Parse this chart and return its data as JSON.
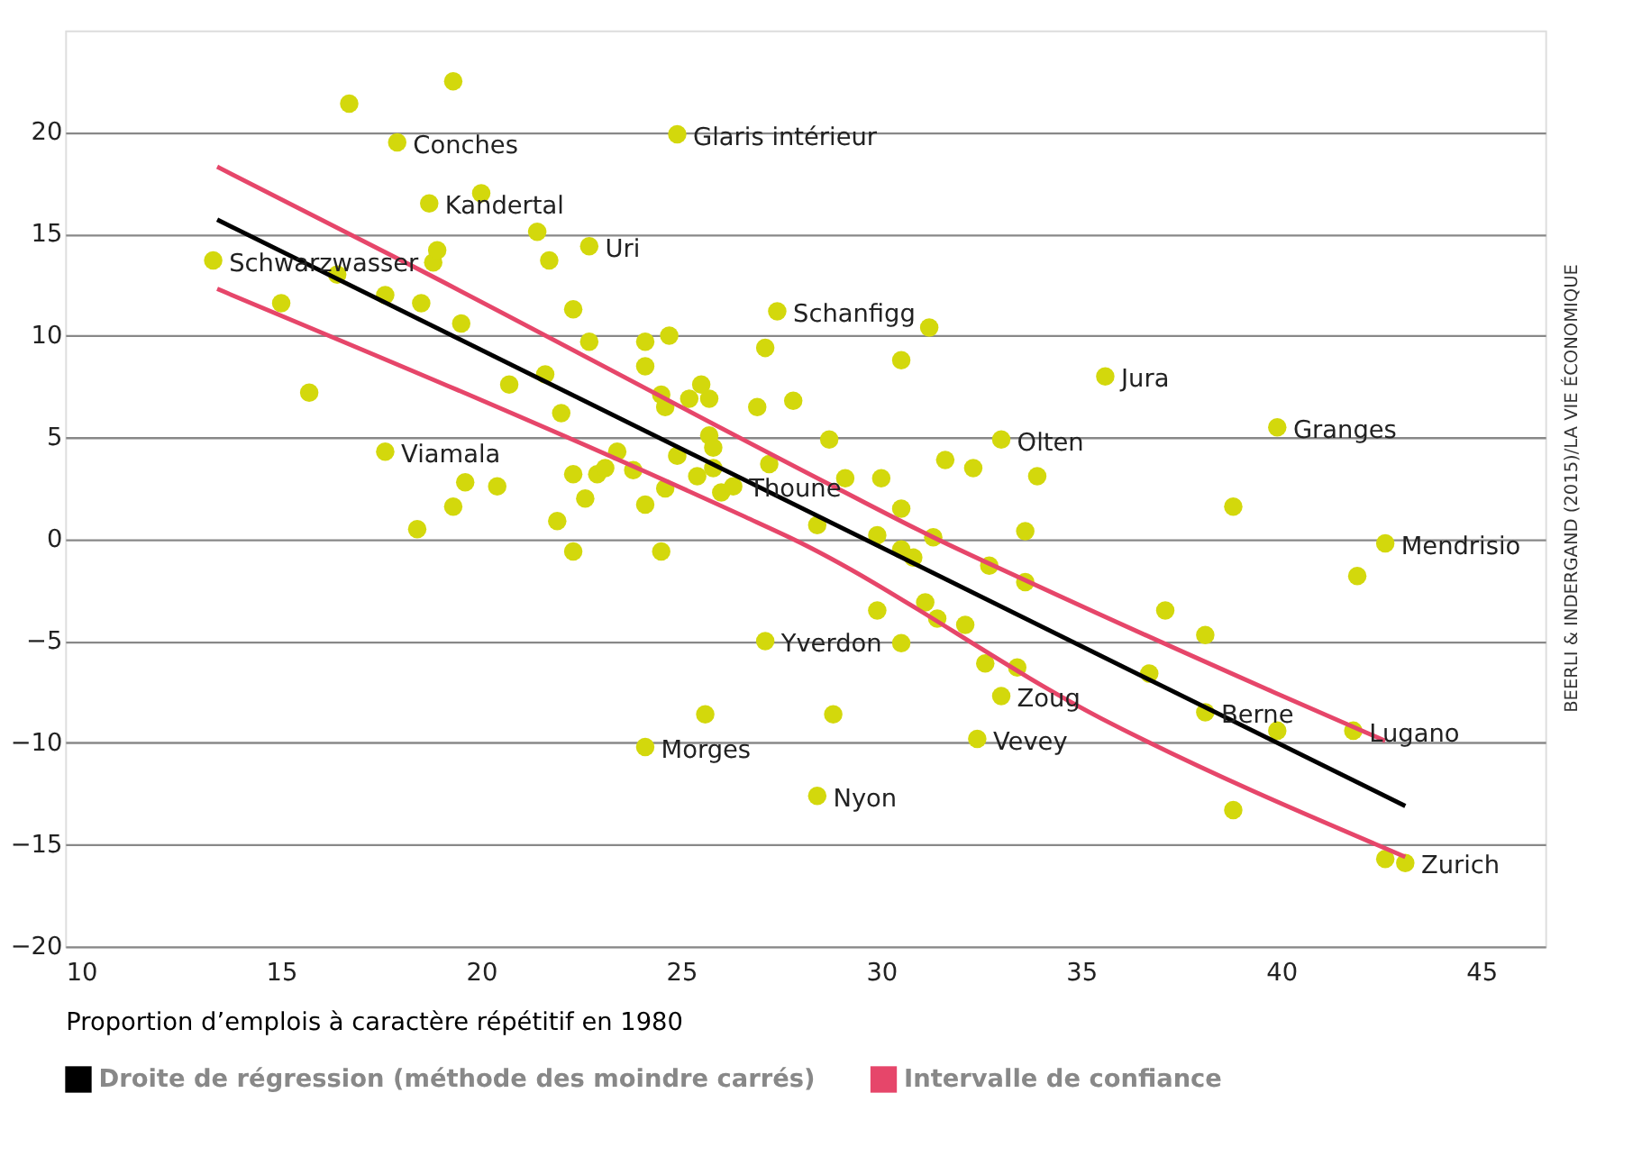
{
  "chart_data": {
    "type": "scatter",
    "xlabel": "Proportion d’emplois à caractère répétitif en 1980",
    "xlim": [
      9.6,
      46.6
    ],
    "xticks": [
      10,
      15,
      20,
      25,
      30,
      35,
      40,
      45
    ],
    "ylim": [
      -20,
      25
    ],
    "yticks": [
      -20,
      -15,
      -10,
      -5,
      0,
      5,
      10,
      15,
      20
    ],
    "grid": "y",
    "legend": "bottom",
    "series": [
      {
        "marker": "circle",
        "color": "#d3d80c",
        "x": [
          13.3,
          15.0,
          15.7,
          16.4,
          16.7,
          17.6,
          17.6,
          17.9,
          18.4,
          18.5,
          18.7,
          18.8,
          18.9,
          19.3,
          19.3,
          19.5,
          19.6,
          20.0,
          20.4,
          20.7,
          21.4,
          21.6,
          21.7,
          21.9,
          22.0,
          22.3,
          22.3,
          22.3,
          22.6,
          22.7,
          22.7,
          22.9,
          23.1,
          23.4,
          23.8,
          24.1,
          24.1,
          24.1,
          24.1,
          24.5,
          24.5,
          24.6,
          24.6,
          24.7,
          24.9,
          24.9,
          25.2,
          25.4,
          25.5,
          25.6,
          25.7,
          25.7,
          25.8,
          25.8,
          26.0,
          26.3,
          26.9,
          27.1,
          27.1,
          27.2,
          27.4,
          27.8,
          28.4,
          28.4,
          28.7,
          28.8,
          29.1,
          29.9,
          29.9,
          30.0,
          30.5,
          30.5,
          30.5,
          30.5,
          30.8,
          31.1,
          31.2,
          31.3,
          31.4,
          31.6,
          32.1,
          32.3,
          32.4,
          32.6,
          32.7,
          33.0,
          33.0,
          33.4,
          33.6,
          33.6,
          33.9,
          35.6,
          36.7,
          37.1,
          38.1,
          38.1,
          38.8,
          38.8,
          39.9,
          39.9,
          41.8,
          41.9,
          42.6,
          42.6,
          43.1
        ],
        "values": [
          13.7,
          11.6,
          7.2,
          13.0,
          21.4,
          12.0,
          4.3,
          19.5,
          0.5,
          11.6,
          16.5,
          13.6,
          14.2,
          22.5,
          1.6,
          10.6,
          2.8,
          17.0,
          2.6,
          7.6,
          15.1,
          8.1,
          13.7,
          0.9,
          6.2,
          11.3,
          3.2,
          -0.6,
          2.0,
          14.4,
          9.7,
          3.2,
          3.5,
          4.3,
          3.4,
          9.7,
          8.5,
          1.7,
          -10.2,
          7.1,
          -0.6,
          6.5,
          2.5,
          10.0,
          19.9,
          4.1,
          6.9,
          3.1,
          7.6,
          -8.6,
          6.9,
          5.1,
          4.5,
          3.5,
          2.3,
          2.6,
          6.5,
          9.4,
          -5.0,
          3.7,
          11.2,
          6.8,
          0.7,
          -12.6,
          4.9,
          -8.6,
          3.0,
          0.2,
          -3.5,
          3.0,
          8.8,
          1.5,
          -0.5,
          -5.1,
          -0.9,
          -3.1,
          10.4,
          0.1,
          -3.9,
          3.9,
          -4.2,
          3.5,
          -9.8,
          -6.1,
          -1.3,
          4.9,
          -7.7,
          -6.3,
          0.4,
          -2.1,
          3.1,
          8.0,
          -6.6,
          -3.5,
          -4.7,
          -8.5,
          1.6,
          -13.3,
          5.5,
          -9.4,
          -9.4,
          -1.8,
          -0.2,
          -15.7,
          -15.9
        ]
      },
      {
        "type": "line",
        "name": "Droite de régression (méthode des moindre carrés)",
        "color": "#000000",
        "x": [
          13.4,
          43.1
        ],
        "values": [
          15.7,
          -13.1
        ]
      },
      {
        "type": "line",
        "name": "Intervalle de confiance",
        "color": "#e6466a",
        "x": [
          13.4,
          18.2,
          28.9,
          31.3,
          33.7,
          39.8,
          42.6
        ],
        "values": [
          18.3,
          13.5,
          2.5,
          0.1,
          -2.1,
          -7.5,
          -9.9
        ]
      },
      {
        "type": "line",
        "color": "#e6466a",
        "x": [
          13.4,
          26.6,
          27.7,
          35.5,
          43.1
        ],
        "values": [
          12.3,
          1.1,
          0.1,
          -8.8,
          -15.6
        ]
      }
    ],
    "annotations": [
      {
        "text": "Schwarzwasser",
        "x": 13.3,
        "y": 13.7
      },
      {
        "text": "Conches",
        "x": 17.9,
        "y": 19.5
      },
      {
        "text": "Kandertal",
        "x": 18.7,
        "y": 16.5
      },
      {
        "text": "Glaris intérieur",
        "x": 24.9,
        "y": 19.9
      },
      {
        "text": "Uri",
        "x": 22.7,
        "y": 14.4
      },
      {
        "text": "Schanfigg",
        "x": 27.4,
        "y": 11.2
      },
      {
        "text": "Viamala",
        "x": 17.6,
        "y": 4.3
      },
      {
        "text": "Thoune",
        "x": 26.3,
        "y": 2.6
      },
      {
        "text": "Jura",
        "x": 35.6,
        "y": 8.0
      },
      {
        "text": "Olten",
        "x": 33.0,
        "y": 4.9
      },
      {
        "text": "Granges",
        "x": 39.9,
        "y": 5.5
      },
      {
        "text": "Mendrisio",
        "x": 42.6,
        "y": -0.2
      },
      {
        "text": "Yverdon",
        "x": 27.1,
        "y": -5.0
      },
      {
        "text": "Zoug",
        "x": 33.0,
        "y": -7.7
      },
      {
        "text": "Berne",
        "x": 38.1,
        "y": -8.5
      },
      {
        "text": "Lugano",
        "x": 41.8,
        "y": -9.4
      },
      {
        "text": "Morges",
        "x": 24.1,
        "y": -10.2
      },
      {
        "text": "Vevey",
        "x": 32.4,
        "y": -9.8
      },
      {
        "text": "Nyon",
        "x": 28.4,
        "y": -12.6
      },
      {
        "text": "Zurich",
        "x": 43.1,
        "y": -15.9
      },
      "BEERLI & INDERGAND (2015)/LA VIE ÉCONOMIQUE"
    ]
  }
}
